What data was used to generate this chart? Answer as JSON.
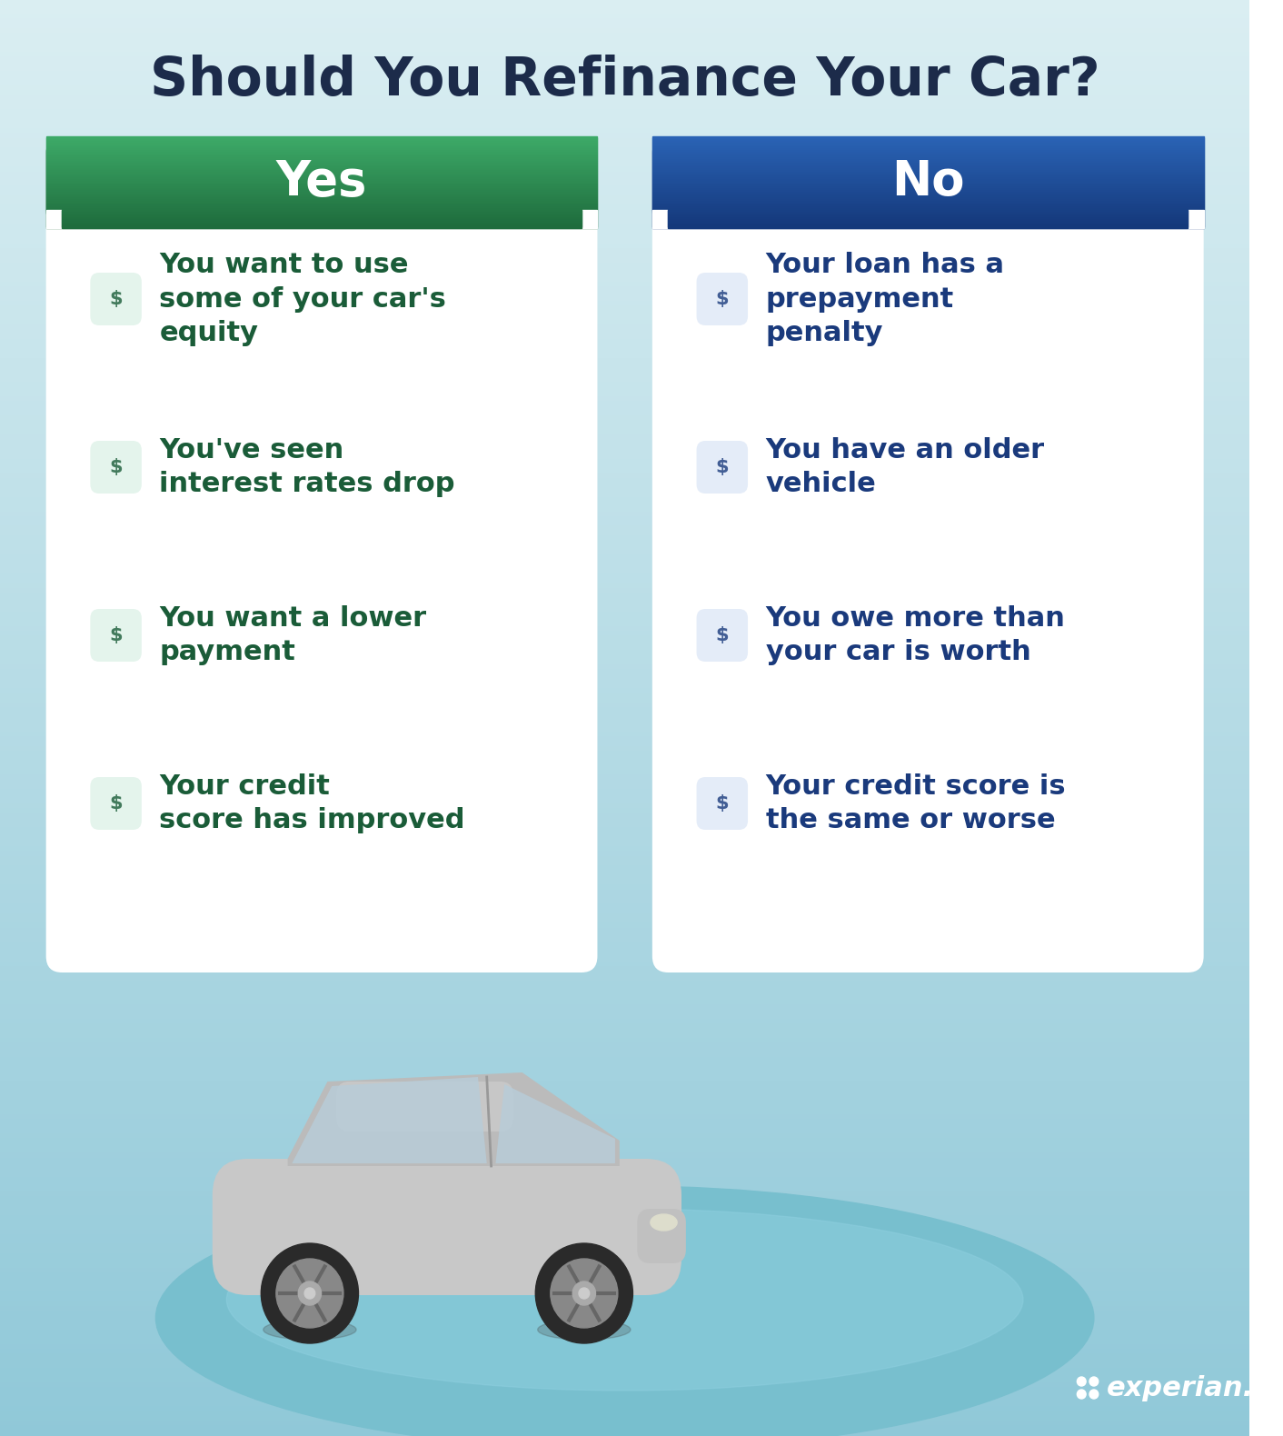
{
  "title": "Should You Refinance Your Car?",
  "title_color": "#1c2b4a",
  "title_fontsize": 42,
  "yes_label": "Yes",
  "no_label": "No",
  "yes_header_top": "#3daa68",
  "yes_header_bot": "#1e6b3c",
  "no_header_top": "#2a63b5",
  "no_header_bot": "#14387a",
  "card_bg": "#ffffff",
  "yes_text_color": "#1a5c38",
  "no_text_color": "#1a3a7c",
  "yes_icon_bg": "#e4f4ec",
  "no_icon_bg": "#e4ecf8",
  "bg_top": "#daeef2",
  "bg_bot": "#90c8d8",
  "ground_color": "#78bfce",
  "yes_items": [
    "You want to use\nsome of your car's\nequity",
    "You've seen\ninterest rates drop",
    "You want a lower\npayment",
    "Your credit\nscore has improved"
  ],
  "no_items": [
    "Your loan has a\nprepayment\npenalty",
    "You have an older\nvehicle",
    "You owe more than\nyour car is worth",
    "Your credit score is\nthe same or worse"
  ],
  "header_fontsize": 38,
  "item_fontsize": 22,
  "experian_color": "#ffffff"
}
